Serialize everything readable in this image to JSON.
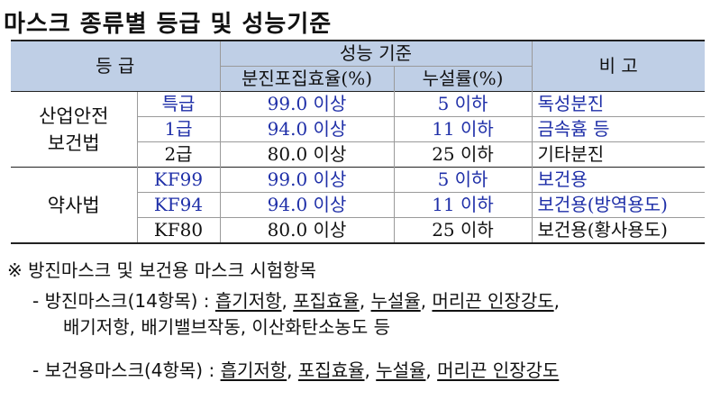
{
  "title": "마스크 종류별 등급 및 성능기준",
  "table": {
    "header": {
      "grade": "등 급",
      "performance": "성능 기준",
      "filter": "분진포집효율(%)",
      "leak": "누설률(%)",
      "remark": "비 고"
    },
    "groups": [
      {
        "name_lines": [
          "산업안전",
          "보건법"
        ],
        "rows": [
          {
            "grade": "특급",
            "filter": "99.0 이상",
            "leak": "5 이하",
            "remark": "독성분진",
            "blue": true
          },
          {
            "grade": "1급",
            "filter": "94.0 이상",
            "leak": "11 이하",
            "remark": "금속흄 등",
            "blue": true
          },
          {
            "grade": "2급",
            "filter": "80.0 이상",
            "leak": "25 이하",
            "remark": "기타분진",
            "blue": false
          }
        ]
      },
      {
        "name_lines": [
          "약사법"
        ],
        "rows": [
          {
            "grade": "KF99",
            "filter": "99.0 이상",
            "leak": "5 이하",
            "remark": "보건용",
            "blue": true
          },
          {
            "grade": "KF94",
            "filter": "94.0 이상",
            "leak": "11 이하",
            "remark": "보건용(방역용도)",
            "blue": true
          },
          {
            "grade": "KF80",
            "filter": "80.0 이상",
            "leak": "25 이하",
            "remark": "보건용(황사용도)",
            "blue": false
          }
        ]
      }
    ]
  },
  "notes": {
    "heading": "※ 방진마스크 및 보건용 마스크 시험항목",
    "dust_prefix": "- 방진마스크(14항목) :",
    "dust_items_line1": [
      "흡기저항",
      "포집효율",
      "누설율",
      "머리끈 인장강도"
    ],
    "dust_line2": "배기저항, 배기밸브작동, 이산화탄소농도 등",
    "health_prefix": "- 보건용마스크(4항목) :",
    "health_items": [
      "흡기저항",
      "포집효율",
      "누설율",
      "머리끈 인장강도"
    ]
  }
}
